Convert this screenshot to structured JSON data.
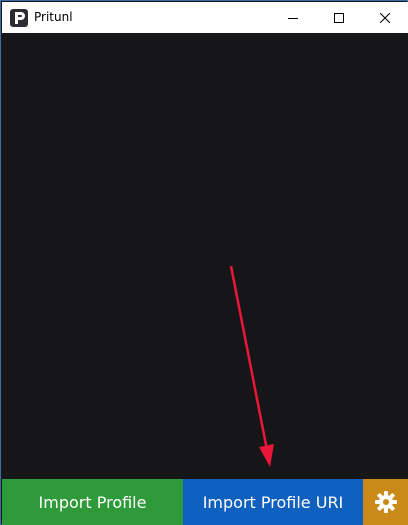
{
  "window": {
    "title": "Pritunl"
  },
  "footer": {
    "import_profile_label": "Import Profile",
    "import_profile_uri_label": "Import Profile URI"
  },
  "colors": {
    "import_profile_bg": "#2f9a3a",
    "import_profile_uri_bg": "#1060c0",
    "settings_bg": "#c98a1a",
    "content_bg": "#161618",
    "annotation_arrow": "#e8173a"
  },
  "icons": {
    "app": "pritunl-logo-icon",
    "minimize": "minimize-icon",
    "maximize": "maximize-icon",
    "close": "close-icon",
    "settings": "gear-icon"
  }
}
